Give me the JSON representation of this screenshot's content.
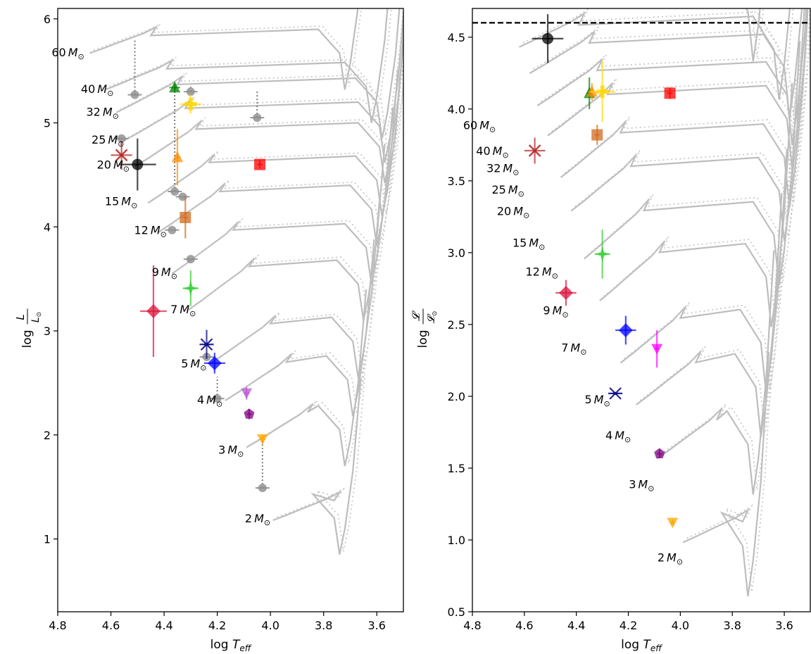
{
  "chart_data": [
    {
      "type": "scatter",
      "panel": "left",
      "title": "",
      "xlabel": "log T_eff",
      "ylabel": "log L/L⊙",
      "xlim": [
        4.8,
        3.5
      ],
      "ylim": [
        0.3,
        6.1
      ],
      "x_ticks": [
        "4.8",
        "4.6",
        "4.4",
        "4.2",
        "4.0",
        "3.8",
        "3.6"
      ],
      "y_ticks": [
        "1",
        "2",
        "3",
        "4",
        "5",
        "6"
      ],
      "track_labels": [
        {
          "mass": "60",
          "x": 4.7,
          "y": 5.68
        },
        {
          "mass": "40",
          "x": 4.59,
          "y": 5.33
        },
        {
          "mass": "32",
          "x": 4.57,
          "y": 5.11
        },
        {
          "mass": "25",
          "x": 4.55,
          "y": 4.84
        },
        {
          "mass": "20",
          "x": 4.53,
          "y": 4.6
        },
        {
          "mass": "15",
          "x": 4.5,
          "y": 4.25
        },
        {
          "mass": "12",
          "x": 4.39,
          "y": 3.97
        },
        {
          "mass": "9",
          "x": 4.35,
          "y": 3.57
        },
        {
          "mass": "7",
          "x": 4.28,
          "y": 3.21
        },
        {
          "mass": "5",
          "x": 4.24,
          "y": 2.69
        },
        {
          "mass": "4",
          "x": 4.18,
          "y": 2.34
        },
        {
          "mass": "3",
          "x": 4.1,
          "y": 1.86
        },
        {
          "mass": "2",
          "x": 4.0,
          "y": 1.2
        }
      ],
      "points": [
        {
          "name": "black",
          "marker": "circle",
          "color": "#000000",
          "x": 4.5,
          "y": 4.6,
          "xerr": 0.07,
          "yerr": 0.25
        },
        {
          "name": "brown",
          "marker": "x",
          "color": "#b22222",
          "x": 4.56,
          "y": 4.69,
          "xerr": 0.04,
          "yerr": 0.14
        },
        {
          "name": "green",
          "marker": "triangle",
          "color": "#008000",
          "x": 4.36,
          "y": 5.34,
          "xerr": 0.02,
          "yerr": 0.04
        },
        {
          "name": "gold",
          "marker": "plus",
          "color": "#ffd700",
          "x": 4.3,
          "y": 5.18,
          "xerr": 0.04,
          "yerr": 0.09
        },
        {
          "name": "red",
          "marker": "square",
          "color": "#ff0000",
          "x": 4.04,
          "y": 4.6,
          "xerr": 0.01,
          "yerr": 0.04
        },
        {
          "name": "orange",
          "marker": "triangle",
          "color": "#ff8c00",
          "x": 4.35,
          "y": 4.67,
          "xerr": 0.01,
          "yerr": 0.27
        },
        {
          "name": "chocolate",
          "marker": "square",
          "color": "#d2691e",
          "x": 4.32,
          "y": 4.09,
          "xerr": 0.01,
          "yerr": 0.2
        },
        {
          "name": "limegreen",
          "marker": "star",
          "color": "#32cd32",
          "x": 4.3,
          "y": 3.41,
          "xerr": 0.03,
          "yerr": 0.17
        },
        {
          "name": "crimson",
          "marker": "diamond",
          "color": "#dc143c",
          "x": 4.44,
          "y": 3.19,
          "xerr": 0.05,
          "yerr": 0.44
        },
        {
          "name": "navy",
          "marker": "asterisk",
          "color": "#000080",
          "x": 4.24,
          "y": 2.87,
          "xerr": 0.01,
          "yerr": 0.14
        },
        {
          "name": "blue",
          "marker": "diamond",
          "color": "#0000ff",
          "x": 4.21,
          "y": 2.69,
          "xerr": 0.04,
          "yerr": 0.1
        },
        {
          "name": "magenta",
          "marker": "triangle-down",
          "color": "#ba55d3",
          "x": 4.09,
          "y": 2.4,
          "xerr": 0.01,
          "yerr": 0.06
        },
        {
          "name": "purple",
          "marker": "pentagon",
          "color": "#800080",
          "x": 4.08,
          "y": 2.2,
          "xerr": 0.01,
          "yerr": 0.05
        },
        {
          "name": "orange2",
          "marker": "triangle-down",
          "color": "#ffa500",
          "x": 4.03,
          "y": 1.96,
          "xerr": 0.01,
          "yerr": 0.04
        }
      ],
      "grey_points": [
        {
          "x": 4.51,
          "y": 5.27,
          "x0": 4.51,
          "y0": 5.8
        },
        {
          "x": 4.56,
          "y": 4.85,
          "x0": 4.56,
          "y0": 4.85
        },
        {
          "x": 4.3,
          "y": 5.3,
          "x0": 4.3,
          "y0": 5.36
        },
        {
          "x": 4.05,
          "y": 5.05,
          "x0": 4.05,
          "y0": 5.32
        },
        {
          "x": 4.36,
          "y": 4.34,
          "x0": 4.36,
          "y0": 5.34
        },
        {
          "x": 4.33,
          "y": 4.29,
          "x0": 4.33,
          "y0": 4.29
        },
        {
          "x": 4.37,
          "y": 3.97,
          "x0": 4.37,
          "y0": 3.97
        },
        {
          "x": 4.3,
          "y": 3.69,
          "x0": 4.3,
          "y0": 3.69
        },
        {
          "x": 4.24,
          "y": 2.75,
          "x0": 4.24,
          "y0": 2.75
        },
        {
          "x": 4.2,
          "y": 2.35,
          "x0": 4.2,
          "y0": 2.56
        },
        {
          "x": 4.03,
          "y": 1.49,
          "x0": 4.03,
          "y0": 1.96
        }
      ]
    },
    {
      "type": "scatter",
      "panel": "right",
      "title": "",
      "xlabel": "log T_eff",
      "ylabel": "log 𝓛/𝓛⊙",
      "xlim": [
        4.8,
        3.5
      ],
      "ylim": [
        0.5,
        4.7
      ],
      "hline": 4.6,
      "x_ticks": [
        "4.8",
        "4.6",
        "4.4",
        "4.2",
        "4.0",
        "3.8",
        "3.6"
      ],
      "y_ticks": [
        "0.5",
        "1.0",
        "1.5",
        "2.0",
        "2.5",
        "3.0",
        "3.5",
        "4.0",
        "4.5"
      ],
      "track_labels": [
        {
          "mass": "60",
          "x": 4.71,
          "y": 3.89
        },
        {
          "mass": "40",
          "x": 4.66,
          "y": 3.71
        },
        {
          "mass": "32",
          "x": 4.62,
          "y": 3.59
        },
        {
          "mass": "25",
          "x": 4.6,
          "y": 3.44
        },
        {
          "mass": "20",
          "x": 4.58,
          "y": 3.29
        },
        {
          "mass": "15",
          "x": 4.52,
          "y": 3.07
        },
        {
          "mass": "12",
          "x": 4.47,
          "y": 2.87
        },
        {
          "mass": "9",
          "x": 4.43,
          "y": 2.6
        },
        {
          "mass": "7",
          "x": 4.36,
          "y": 2.34
        },
        {
          "mass": "5",
          "x": 4.27,
          "y": 1.98
        },
        {
          "mass": "4",
          "x": 4.19,
          "y": 1.73
        },
        {
          "mass": "3",
          "x": 4.1,
          "y": 1.39
        },
        {
          "mass": "2",
          "x": 3.99,
          "y": 0.88
        }
      ],
      "points": [
        {
          "name": "black",
          "marker": "circle",
          "color": "#000000",
          "x": 4.51,
          "y": 4.49,
          "xerr": 0.06,
          "yerr": 0.17
        },
        {
          "name": "green",
          "marker": "triangle",
          "color": "#008000",
          "x": 4.35,
          "y": 4.11,
          "xerr": 0.01,
          "yerr": 0.11
        },
        {
          "name": "orange",
          "marker": "triangle",
          "color": "#ff8c00",
          "x": 4.34,
          "y": 4.12,
          "xerr": 0.01,
          "yerr": 0.06
        },
        {
          "name": "gold",
          "marker": "plus",
          "color": "#ffd700",
          "x": 4.3,
          "y": 4.12,
          "xerr": 0.05,
          "yerr": 0.21
        },
        {
          "name": "red",
          "marker": "square",
          "color": "#ff0000",
          "x": 4.04,
          "y": 4.11,
          "xerr": 0.01,
          "yerr": 0.04
        },
        {
          "name": "chocolate",
          "marker": "square",
          "color": "#d2691e",
          "x": 4.32,
          "y": 3.82,
          "xerr": 0.01,
          "yerr": 0.07
        },
        {
          "name": "brown",
          "marker": "x",
          "color": "#b22222",
          "x": 4.56,
          "y": 3.71,
          "xerr": 0.04,
          "yerr": 0.09
        },
        {
          "name": "limegreen",
          "marker": "star",
          "color": "#32cd32",
          "x": 4.3,
          "y": 2.99,
          "xerr": 0.03,
          "yerr": 0.17
        },
        {
          "name": "crimson",
          "marker": "diamond",
          "color": "#dc143c",
          "x": 4.44,
          "y": 2.72,
          "xerr": 0.04,
          "yerr": 0.09
        },
        {
          "name": "blue",
          "marker": "diamond",
          "color": "#0000ff",
          "x": 4.21,
          "y": 2.46,
          "xerr": 0.04,
          "yerr": 0.1
        },
        {
          "name": "magenta",
          "marker": "triangle-down",
          "color": "#ff00ff",
          "x": 4.09,
          "y": 2.33,
          "xerr": 0.01,
          "yerr": 0.13
        },
        {
          "name": "navy",
          "marker": "asterisk",
          "color": "#000080",
          "x": 4.25,
          "y": 2.02,
          "xerr": 0.01,
          "yerr": 0.01
        },
        {
          "name": "purple",
          "marker": "pentagon",
          "color": "#800080",
          "x": 4.08,
          "y": 1.6,
          "xerr": 0.01,
          "yerr": 0.03
        },
        {
          "name": "orange2",
          "marker": "triangle-down",
          "color": "#ffa500",
          "x": 4.03,
          "y": 1.12,
          "xerr": 0.01,
          "yerr": 0.02
        }
      ],
      "grey_points": []
    }
  ],
  "tracks": [
    {
      "mass": "2",
      "L0": 1.18,
      "T0": 3.99,
      "Ltop": 1.45,
      "Tend": 3.72
    },
    {
      "mass": "3",
      "L0": 1.88,
      "T0": 4.09,
      "Ltop": 2.3,
      "Tend": 3.7
    },
    {
      "mass": "4",
      "L0": 2.33,
      "T0": 4.17,
      "Ltop": 2.78,
      "Tend": 3.67
    },
    {
      "mass": "5",
      "L0": 2.68,
      "T0": 4.23,
      "Ltop": 3.15,
      "Tend": 3.65
    },
    {
      "mass": "7",
      "L0": 3.2,
      "T0": 4.31,
      "Ltop": 3.7,
      "Tend": 3.63
    },
    {
      "mass": "9",
      "L0": 3.55,
      "T0": 4.37,
      "Ltop": 4.05,
      "Tend": 3.6
    },
    {
      "mass": "12",
      "L0": 3.95,
      "T0": 4.42,
      "Ltop": 4.42,
      "Tend": 3.58
    },
    {
      "mass": "15",
      "L0": 4.23,
      "T0": 4.46,
      "Ltop": 4.7,
      "Tend": 3.56
    },
    {
      "mass": "20",
      "L0": 4.58,
      "T0": 4.51,
      "Ltop": 5.02,
      "Tend": 3.55
    },
    {
      "mass": "25",
      "L0": 4.83,
      "T0": 4.55,
      "Ltop": 5.22,
      "Tend": 3.55
    },
    {
      "mass": "32",
      "L0": 5.1,
      "T0": 4.58,
      "Ltop": 5.45,
      "Tend": 3.56
    },
    {
      "mass": "40",
      "L0": 5.32,
      "T0": 4.62,
      "Ltop": 5.6,
      "Tend": 3.6
    },
    {
      "mass": "60",
      "L0": 5.67,
      "T0": 4.68,
      "Ltop": 5.92,
      "Tend": 3.7
    }
  ],
  "track_scale_right": {
    "a": 0.833,
    "b": 0.0
  }
}
